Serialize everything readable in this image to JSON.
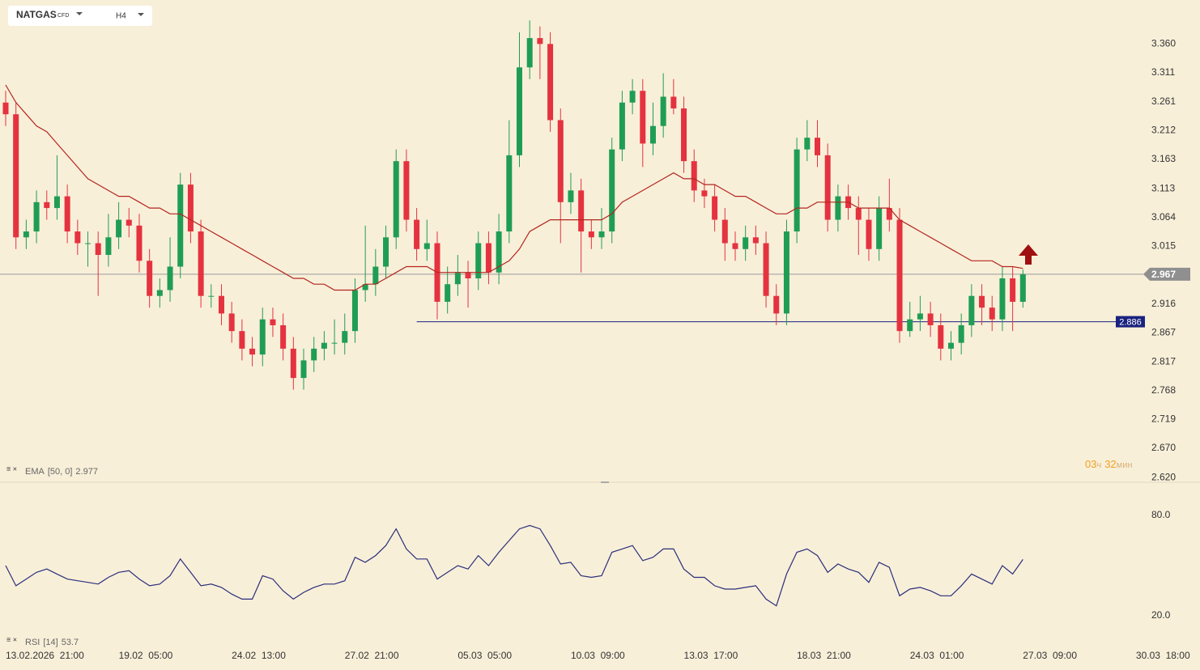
{
  "chart_data": {
    "type": "candlestick",
    "symbol": "NATGAS",
    "instrument": "CFD",
    "timeframe": "H4",
    "up_color": "#1f9d55",
    "down_color": "#e5323f",
    "open": [
      3.26,
      3.24,
      3.03,
      3.04,
      3.09,
      3.08,
      3.1,
      3.04,
      3.02,
      3.02,
      3.0,
      3.03,
      3.06,
      3.05,
      2.99,
      2.93,
      2.94,
      2.98,
      3.12,
      3.04,
      2.93,
      2.93,
      2.9,
      2.87,
      2.84,
      2.83,
      2.89,
      2.88,
      2.84,
      2.79,
      2.82,
      2.84,
      2.85,
      2.85,
      2.87,
      2.94,
      2.95,
      2.98,
      3.03,
      3.16,
      3.06,
      3.01,
      3.02,
      2.92,
      2.95,
      2.97,
      2.96,
      3.02,
      2.97,
      3.04,
      3.17,
      3.32,
      3.37,
      3.36,
      3.23,
      3.09,
      3.11,
      3.04,
      3.03,
      3.04,
      3.18,
      3.26,
      3.28,
      3.19,
      3.22,
      3.27,
      3.25,
      3.16,
      3.11,
      3.1,
      3.06,
      3.02,
      3.01,
      3.03,
      3.02,
      2.93,
      2.9,
      3.04,
      3.18,
      3.2,
      3.17,
      3.06,
      3.1,
      3.08,
      3.06,
      3.01,
      3.08,
      3.06,
      2.87,
      2.89,
      2.9,
      2.88,
      2.84,
      2.85,
      2.88,
      2.93,
      2.91,
      2.89,
      2.96,
      2.92
    ],
    "high": [
      3.28,
      3.26,
      3.06,
      3.11,
      3.11,
      3.17,
      3.12,
      3.06,
      3.04,
      3.04,
      3.07,
      3.09,
      3.08,
      3.07,
      3.01,
      2.96,
      3.03,
      3.14,
      3.14,
      3.06,
      2.95,
      2.95,
      2.92,
      2.89,
      2.86,
      2.91,
      2.91,
      2.9,
      2.86,
      2.84,
      2.86,
      2.87,
      2.89,
      2.9,
      2.96,
      3.05,
      3.01,
      3.05,
      3.18,
      3.18,
      3.08,
      3.06,
      3.04,
      2.98,
      3.0,
      2.99,
      3.04,
      3.04,
      3.07,
      3.23,
      3.38,
      3.4,
      3.39,
      3.38,
      3.25,
      3.14,
      3.13,
      3.06,
      3.08,
      3.2,
      3.28,
      3.3,
      3.3,
      3.26,
      3.31,
      3.3,
      3.27,
      3.18,
      3.13,
      3.12,
      3.08,
      3.04,
      3.05,
      3.05,
      3.04,
      2.95,
      3.06,
      3.2,
      3.23,
      3.23,
      3.19,
      3.12,
      3.12,
      3.1,
      3.08,
      3.1,
      3.13,
      3.08,
      2.92,
      2.93,
      2.92,
      2.9,
      2.87,
      2.9,
      2.95,
      2.95,
      2.93,
      2.98,
      2.98,
      2.975
    ],
    "low": [
      3.22,
      3.01,
      3.01,
      3.02,
      3.06,
      3.06,
      3.02,
      3.0,
      2.98,
      2.93,
      2.98,
      3.01,
      3.03,
      2.97,
      2.91,
      2.91,
      2.92,
      2.96,
      3.02,
      2.91,
      2.91,
      2.88,
      2.85,
      2.82,
      2.81,
      2.81,
      2.86,
      2.82,
      2.77,
      2.77,
      2.8,
      2.82,
      2.83,
      2.83,
      2.85,
      2.92,
      2.93,
      2.96,
      3.01,
      3.04,
      2.99,
      2.99,
      2.89,
      2.9,
      2.93,
      2.91,
      2.94,
      2.95,
      2.95,
      3.02,
      3.15,
      3.3,
      3.3,
      3.21,
      3.02,
      3.07,
      2.97,
      3.01,
      3.01,
      3.02,
      3.16,
      3.24,
      3.15,
      3.17,
      3.2,
      3.24,
      3.14,
      3.09,
      3.08,
      3.04,
      2.99,
      2.99,
      2.99,
      3.0,
      2.91,
      2.88,
      2.88,
      3.02,
      3.16,
      3.15,
      3.04,
      3.04,
      3.06,
      3.0,
      2.99,
      2.99,
      3.04,
      2.85,
      2.86,
      2.87,
      2.86,
      2.82,
      2.82,
      2.83,
      2.86,
      2.88,
      2.87,
      2.87,
      2.87,
      2.91
    ],
    "close": [
      3.24,
      3.03,
      3.04,
      3.09,
      3.08,
      3.1,
      3.04,
      3.02,
      3.02,
      3.0,
      3.03,
      3.06,
      3.05,
      2.99,
      2.93,
      2.94,
      2.98,
      3.12,
      3.04,
      2.93,
      2.93,
      2.9,
      2.87,
      2.84,
      2.83,
      2.89,
      2.88,
      2.84,
      2.79,
      2.82,
      2.84,
      2.85,
      2.85,
      2.87,
      2.94,
      2.95,
      2.98,
      3.03,
      3.16,
      3.06,
      3.01,
      3.02,
      2.92,
      2.95,
      2.97,
      2.96,
      3.02,
      2.97,
      3.04,
      3.17,
      3.32,
      3.37,
      3.36,
      3.23,
      3.09,
      3.11,
      3.04,
      3.03,
      3.04,
      3.18,
      3.26,
      3.28,
      3.19,
      3.22,
      3.27,
      3.25,
      3.16,
      3.11,
      3.1,
      3.06,
      3.02,
      3.01,
      3.03,
      3.02,
      2.93,
      2.9,
      3.04,
      3.18,
      3.2,
      3.17,
      3.06,
      3.1,
      3.08,
      3.06,
      3.01,
      3.08,
      3.06,
      2.87,
      2.89,
      2.9,
      2.88,
      2.84,
      2.85,
      2.88,
      2.93,
      2.91,
      2.89,
      2.96,
      2.92,
      2.967
    ],
    "ylim": [
      2.612,
      3.435
    ],
    "yticks": [
      {
        "value": 3.36,
        "label": "3.360"
      },
      3.311,
      3.261,
      3.212,
      3.163,
      3.113,
      3.064,
      3.015,
      2.916,
      2.867,
      2.817,
      2.768,
      2.719,
      {
        "value": 2.67,
        "label": "2.670"
      },
      {
        "value": 2.62,
        "label": "2.620"
      }
    ],
    "last_price": 2.967,
    "level": 2.886,
    "level_color": "#1a237e",
    "x_labels": [
      "13.02.2026  21:00",
      "19.02  05:00",
      "24.02  13:00",
      "27.02  21:00",
      "05.03  05:00",
      "10.03  09:00",
      "13.03  17:00",
      "18.03  21:00",
      "24.03  01:00",
      "27.03  09:00",
      "30.03  18:00"
    ],
    "timer": {
      "hours": "03",
      "hours_unit": "ч",
      "minutes": "32",
      "minutes_unit": "мин"
    },
    "ema": {
      "name": "EMA",
      "params": "[50, 0]",
      "value": 2.977,
      "color": "#b3261e",
      "values": [
        3.29,
        3.26,
        3.24,
        3.22,
        3.21,
        3.19,
        3.17,
        3.15,
        3.13,
        3.12,
        3.11,
        3.1,
        3.1,
        3.09,
        3.08,
        3.08,
        3.07,
        3.07,
        3.06,
        3.05,
        3.04,
        3.03,
        3.02,
        3.01,
        3.0,
        2.99,
        2.98,
        2.97,
        2.96,
        2.96,
        2.95,
        2.95,
        2.94,
        2.94,
        2.94,
        2.95,
        2.95,
        2.96,
        2.97,
        2.98,
        2.98,
        2.98,
        2.97,
        2.97,
        2.97,
        2.97,
        2.97,
        2.97,
        2.98,
        2.99,
        3.01,
        3.04,
        3.05,
        3.06,
        3.06,
        3.06,
        3.06,
        3.06,
        3.06,
        3.07,
        3.09,
        3.1,
        3.11,
        3.12,
        3.13,
        3.14,
        3.13,
        3.13,
        3.12,
        3.12,
        3.11,
        3.1,
        3.1,
        3.09,
        3.08,
        3.07,
        3.07,
        3.08,
        3.08,
        3.09,
        3.09,
        3.09,
        3.09,
        3.08,
        3.08,
        3.08,
        3.08,
        3.06,
        3.05,
        3.04,
        3.03,
        3.02,
        3.01,
        3.0,
        2.99,
        2.99,
        2.99,
        2.98,
        2.98,
        2.977
      ]
    },
    "rsi": {
      "name": "RSI",
      "params": "[14]",
      "value": 53.7,
      "color": "#2a2f7a",
      "ylim": [
        0,
        100
      ],
      "yticks": [
        {
          "value": 80,
          "label": "80.0"
        },
        {
          "value": 20,
          "label": "20.0"
        }
      ],
      "values": [
        50,
        38,
        42,
        46,
        48,
        45,
        42,
        41,
        40,
        39,
        43,
        46,
        47,
        42,
        38,
        39,
        44,
        54,
        46,
        38,
        39,
        37,
        33,
        30,
        30,
        44,
        42,
        35,
        30,
        34,
        37,
        39,
        39,
        41,
        55,
        52,
        56,
        62,
        72,
        60,
        54,
        54,
        42,
        46,
        50,
        48,
        56,
        50,
        58,
        65,
        72,
        74,
        72,
        62,
        51,
        52,
        44,
        43,
        44,
        58,
        60,
        62,
        53,
        55,
        60,
        60,
        48,
        43,
        43,
        38,
        36,
        36,
        37,
        38,
        30,
        26,
        45,
        58,
        60,
        56,
        46,
        51,
        48,
        46,
        40,
        52,
        49,
        32,
        36,
        37,
        35,
        32,
        32,
        38,
        45,
        42,
        39,
        50,
        45,
        53.7
      ]
    }
  }
}
